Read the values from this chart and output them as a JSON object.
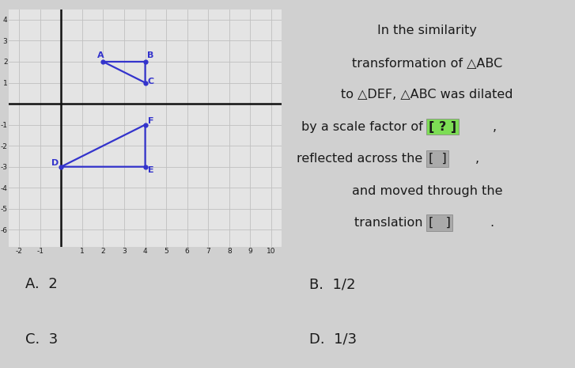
{
  "bg_color": "#d0d0d0",
  "graph_bg": "#e4e4e4",
  "panel_bg": "#d4d4d4",
  "btn_color": "#b8bec8",
  "triangle_ABC": {
    "A": [
      2,
      2
    ],
    "B": [
      4,
      2
    ],
    "C": [
      4,
      1
    ]
  },
  "triangle_DEF": {
    "D": [
      0,
      -3
    ],
    "E": [
      4,
      -3
    ],
    "F": [
      4,
      -1
    ]
  },
  "point_color": "#3333cc",
  "line_color": "#3333cc",
  "axis_color": "#111111",
  "label_color": "#3333cc",
  "text_color": "#1a1a1a",
  "grid_color": "#c0c0c0",
  "xlim": [
    -2.5,
    10.5
  ],
  "ylim": [
    -6.8,
    4.5
  ],
  "xticks": [
    -2,
    -1,
    0,
    1,
    2,
    3,
    4,
    5,
    6,
    7,
    8,
    9,
    10
  ],
  "yticks": [
    -6,
    -5,
    -4,
    -3,
    -2,
    -1,
    0,
    1,
    2,
    3,
    4
  ],
  "highlight_color": "#7ddd55",
  "bracket_bg": "#aaaaaa",
  "btn_labels": [
    "A.  2",
    "B.  1/2",
    "C.  3",
    "D.  1/3"
  ]
}
